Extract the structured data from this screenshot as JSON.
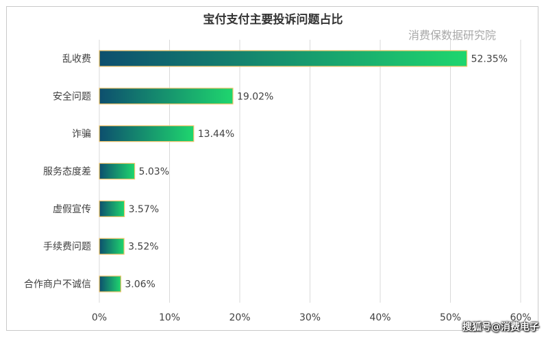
{
  "watermarks": {
    "top": "消费保数据研究院",
    "bottom": "搜狐号@消费电子"
  },
  "colors": {
    "bar_start": "#0d4f6e",
    "bar_end": "#1fd66e",
    "bar_border": "#f3c46a",
    "grid": "#d9d9d9",
    "text": "#404040"
  },
  "chart_data": {
    "type": "bar",
    "orientation": "horizontal",
    "title": "宝付支付主要投诉问题占比",
    "categories": [
      "乱收费",
      "安全问题",
      "诈骗",
      "服务态度差",
      "虚假宣传",
      "手续费问题",
      "合作商户不诚信"
    ],
    "values": [
      52.35,
      19.02,
      13.44,
      5.03,
      3.57,
      3.52,
      3.06
    ],
    "data_labels": [
      "52.35%",
      "19.02%",
      "13.44%",
      "5.03%",
      "3.57%",
      "3.52%",
      "3.06%"
    ],
    "xlim": [
      0,
      60
    ],
    "x_ticks": [
      "0%",
      "10%",
      "20%",
      "30%",
      "40%",
      "50%",
      "60%"
    ],
    "xlabel": "",
    "ylabel": "",
    "grid": true,
    "legend": "none"
  }
}
